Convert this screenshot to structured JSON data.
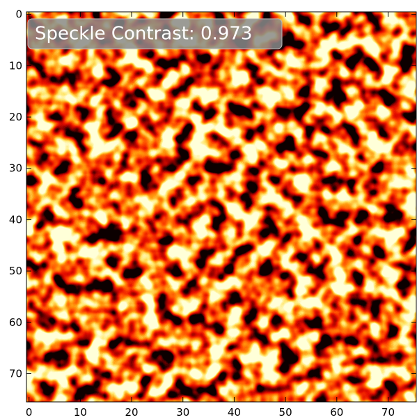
{
  "chart_data": {
    "type": "image",
    "annotation": "Speckle Contrast: 0.973",
    "xlim": [
      -0.5,
      75.5
    ],
    "ylim": [
      75.5,
      -0.5
    ],
    "xticks": [
      0,
      10,
      20,
      30,
      40,
      50,
      60,
      70
    ],
    "yticks": [
      0,
      10,
      20,
      30,
      40,
      50,
      60,
      70
    ]
  }
}
